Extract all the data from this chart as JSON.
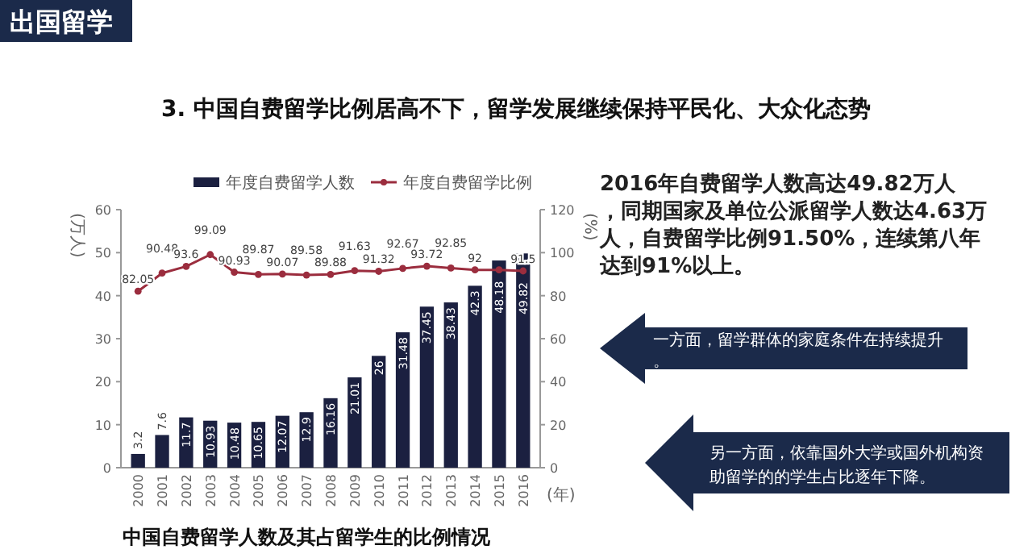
{
  "chart_data": {
    "type": "bar",
    "title": "3. 中国自费留学比例居高不下，留学发展继续保持平民化、大众化态势",
    "categories": [
      "2000",
      "2001",
      "2002",
      "2003",
      "2004",
      "2005",
      "2006",
      "2007",
      "2008",
      "2009",
      "2010",
      "2011",
      "2012",
      "2013",
      "2014",
      "2015",
      "2016"
    ],
    "series": [
      {
        "name": "年度自费留学人数",
        "color": "#1b2040",
        "values": [
          3.2,
          7.6,
          11.7,
          10.93,
          10.48,
          10.65,
          12.07,
          12.9,
          16.16,
          21.01,
          26,
          31.48,
          37.45,
          38.43,
          42.3,
          48.18,
          49.82
        ]
      },
      {
        "name": "年度自费留学比例",
        "type": "line",
        "axis": "y2",
        "color": "#9b2d3e",
        "marker": "circle",
        "values": [
          82.05,
          90.48,
          93.6,
          99.09,
          90.93,
          89.87,
          90.07,
          89.58,
          89.88,
          91.63,
          91.32,
          92.67,
          93.72,
          92.85,
          92,
          92,
          91.5
        ],
        "value_labels": [
          "82.05",
          "90.48",
          "93.6",
          "99.09",
          "90.93",
          "89.87",
          "90.07",
          "89.58",
          "89.88",
          "91.63",
          "91.32",
          "92.67",
          "93.72",
          "92.85",
          "92",
          null,
          "91.5"
        ]
      }
    ],
    "data_labels": true,
    "ylabel": "(万人)",
    "y2label": "(%)",
    "xlabel": "(年)",
    "ylim": [
      0,
      60
    ],
    "yticks": [
      0,
      10,
      20,
      30,
      40,
      50,
      60
    ],
    "y2lim": [
      0,
      120
    ],
    "y2ticks": [
      0,
      20,
      40,
      60,
      80,
      100,
      120
    ],
    "legend": "top",
    "grid": false,
    "annotations": [
      "出国留学",
      "中国自费留学人数及其占留学生的比例情况",
      "2016年自费留学人数高达49.82万人，同期国家及单位公派留学人数达4.63万人，自费留学比例91.50%，连续第八年达到91%以上。",
      "一方面，留学群体的家庭条件在持续提升。",
      "另一方面，依靠国外大学或国外机构资助留学的的学生占比逐年下降。"
    ]
  }
}
